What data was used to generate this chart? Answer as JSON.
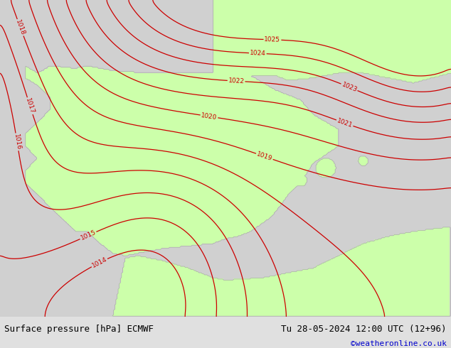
{
  "title_left": "Surface pressure [hPa] ECMWF",
  "title_right": "Tu 28-05-2024 12:00 UTC (12+96)",
  "credit": "©weatheronline.co.uk",
  "credit_color": "#0000cc",
  "ocean_color": "#d0d0d0",
  "land_color": "#ccffaa",
  "coast_color": "#aaaaaa",
  "contour_color": "#cc0000",
  "contour_linewidth": 0.9,
  "label_fontsize": 6.5,
  "footer_fontsize": 9,
  "footer_bg": "#e0e0e0",
  "lon_min": -10.5,
  "lon_max": 7.5,
  "lat_min": 33.5,
  "lat_max": 46.5,
  "pressure_levels": [
    1014,
    1015,
    1016,
    1017,
    1018,
    1019,
    1020,
    1021,
    1022,
    1023,
    1024,
    1025
  ],
  "figsize": [
    6.34,
    4.9
  ],
  "dpi": 100
}
